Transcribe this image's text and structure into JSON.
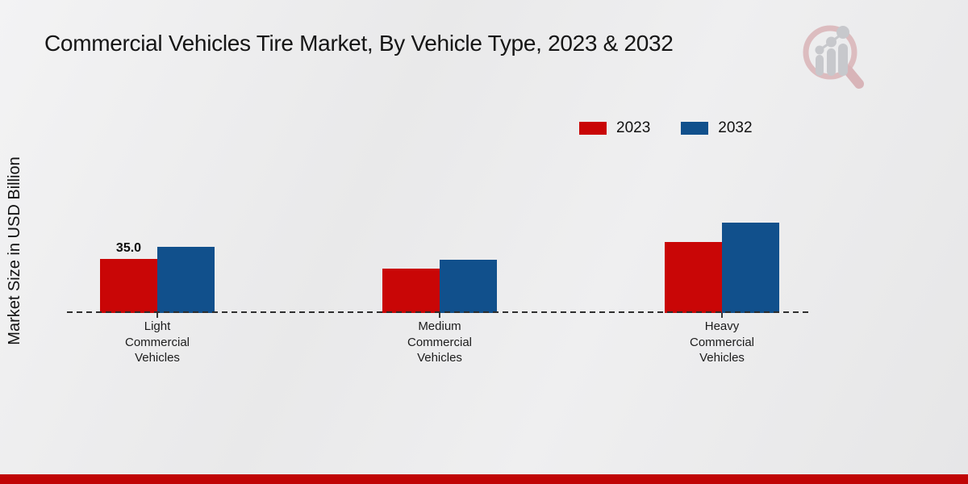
{
  "page": {
    "background_color": "#e9e9ea",
    "footer_bar_color": "#c00505"
  },
  "logo": {
    "name": "magnifier-growth-chart-logo",
    "ring_color": "#dcbcbf",
    "bars_color": "#c7c8cc"
  },
  "chart_data": {
    "type": "bar",
    "title": "Commercial Vehicles Tire Market, By Vehicle Type, 2023 & 2032",
    "ylabel": "Market Size in USD Billion",
    "xlabel": "",
    "categories": [
      "Light Commercial Vehicles",
      "Medium Commercial Vehicles",
      "Heavy Commercial Vehicles"
    ],
    "series": [
      {
        "name": "2023",
        "color": "#c90606",
        "values": [
          35.0,
          29.0,
          46.5
        ]
      },
      {
        "name": "2032",
        "color": "#11508c",
        "values": [
          43.0,
          34.5,
          59.0
        ]
      }
    ],
    "data_labels": [
      {
        "series_index": 0,
        "category_index": 0,
        "text": "35.0"
      }
    ],
    "ylim": [
      0,
      70
    ],
    "grid": false,
    "legend_position": "upper-right",
    "baseline_style": "dashed",
    "axis_line_color": "#2e2e2e"
  }
}
